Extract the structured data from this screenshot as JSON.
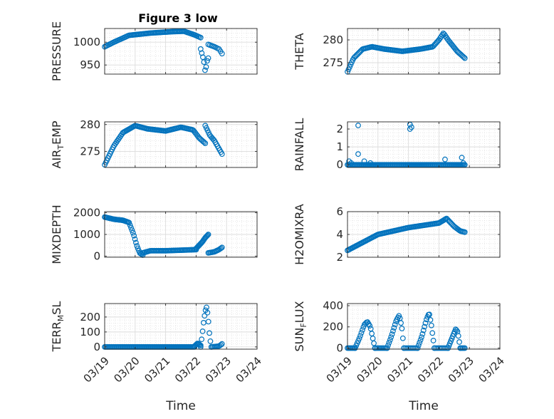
{
  "figure": {
    "title": "Figure 3 low",
    "marker_color": "#0072BD"
  },
  "chart_data": [
    {
      "type": "scatter",
      "ylabel": "PRESSURE",
      "ylabel_sub": "",
      "ylabel_rest": "",
      "ylim": [
        930,
        1030
      ],
      "yticks": [
        950,
        1000
      ],
      "xlim": [
        0,
        5
      ],
      "xticks": [
        0,
        1,
        2,
        3,
        4,
        5
      ],
      "xticklabels": [
        "03/19",
        "03/20",
        "03/21",
        "03/22",
        "03/23",
        "03/24"
      ],
      "xlabel": "",
      "grid": true,
      "segments": [
        {
          "x0": 0.0,
          "x1": 3.15,
          "n": 80,
          "pts": [
            [
              0,
              990
            ],
            [
              0.3,
              1000
            ],
            [
              0.8,
              1015
            ],
            [
              1.5,
              1020
            ],
            [
              2.2,
              1023
            ],
            [
              2.6,
              1024
            ],
            [
              2.95,
              1016
            ],
            [
              3.15,
              1010
            ]
          ]
        },
        {
          "x0": 3.15,
          "x1": 3.4,
          "n": 8,
          "pts": [
            [
              3.15,
              985
            ],
            [
              3.25,
              960
            ],
            [
              3.3,
              935
            ],
            [
              3.38,
              965
            ]
          ]
        },
        {
          "x0": 3.4,
          "x1": 3.85,
          "n": 10,
          "pts": [
            [
              3.4,
              995
            ],
            [
              3.6,
              990
            ],
            [
              3.75,
              985
            ],
            [
              3.85,
              975
            ]
          ]
        }
      ]
    },
    {
      "type": "scatter",
      "ylabel": "THETA",
      "ylabel_sub": "",
      "ylabel_rest": "",
      "ylim": [
        272.5,
        282.5
      ],
      "yticks": [
        275,
        280
      ],
      "xlim": [
        0,
        5
      ],
      "xticks": [
        0,
        1,
        2,
        3,
        4,
        5
      ],
      "xticklabels": [
        "03/19",
        "03/20",
        "03/21",
        "03/22",
        "03/23",
        "03/24"
      ],
      "xlabel": "",
      "grid": true,
      "segments": [
        {
          "x0": 0.0,
          "x1": 3.85,
          "n": 110,
          "pts": [
            [
              0,
              273
            ],
            [
              0.2,
              276
            ],
            [
              0.5,
              278
            ],
            [
              0.8,
              278.5
            ],
            [
              1.2,
              278
            ],
            [
              1.8,
              277.5
            ],
            [
              2.4,
              278
            ],
            [
              2.8,
              278.5
            ],
            [
              3.0,
              280
            ],
            [
              3.15,
              281.5
            ],
            [
              3.3,
              280
            ],
            [
              3.6,
              277.5
            ],
            [
              3.85,
              276
            ]
          ]
        }
      ]
    },
    {
      "type": "scatter",
      "ylabel": "AIR",
      "ylabel_sub": "T",
      "ylabel_rest": "EMP",
      "ylim": [
        272,
        280.5
      ],
      "yticks": [
        275,
        280
      ],
      "xlim": [
        0,
        5
      ],
      "xticks": [
        0,
        1,
        2,
        3,
        4,
        5
      ],
      "xticklabels": [
        "03/19",
        "03/20",
        "03/21",
        "03/22",
        "03/23",
        "03/24"
      ],
      "xlabel": "",
      "grid": true,
      "segments": [
        {
          "x0": 0.0,
          "x1": 3.3,
          "n": 95,
          "pts": [
            [
              0,
              272.5
            ],
            [
              0.3,
              276
            ],
            [
              0.6,
              278.5
            ],
            [
              1.0,
              279.8
            ],
            [
              1.4,
              279.2
            ],
            [
              2.0,
              278.8
            ],
            [
              2.5,
              279.5
            ],
            [
              2.9,
              279
            ],
            [
              3.1,
              277.5
            ],
            [
              3.3,
              276.5
            ]
          ]
        },
        {
          "x0": 3.3,
          "x1": 3.85,
          "n": 16,
          "pts": [
            [
              3.3,
              279.8
            ],
            [
              3.45,
              278
            ],
            [
              3.6,
              277
            ],
            [
              3.75,
              275.5
            ],
            [
              3.85,
              274.5
            ]
          ]
        }
      ]
    },
    {
      "type": "scatter",
      "ylabel": "RAINFALL",
      "ylabel_sub": "",
      "ylabel_rest": "",
      "ylim": [
        -0.15,
        2.4
      ],
      "yticks": [
        0,
        1,
        2
      ],
      "xlim": [
        0,
        5
      ],
      "xticks": [
        0,
        1,
        2,
        3,
        4,
        5
      ],
      "xticklabels": [
        "03/19",
        "03/20",
        "03/21",
        "03/22",
        "03/23",
        "03/24"
      ],
      "xlabel": "",
      "grid": true,
      "segments": [
        {
          "x0": 0.0,
          "x1": 3.85,
          "n": 110,
          "pts": [
            [
              0,
              0
            ],
            [
              3.85,
              0
            ]
          ]
        }
      ],
      "points": [
        [
          0.05,
          0.2
        ],
        [
          0.12,
          0.1
        ],
        [
          0.35,
          2.2
        ],
        [
          0.35,
          0.6
        ],
        [
          0.55,
          0.2
        ],
        [
          0.75,
          0.1
        ],
        [
          2.05,
          2.25
        ],
        [
          2.05,
          2.0
        ],
        [
          2.1,
          2.1
        ],
        [
          3.2,
          0.3
        ],
        [
          3.75,
          0.4
        ],
        [
          3.8,
          0.1
        ]
      ]
    },
    {
      "type": "scatter",
      "ylabel": "MIXDEPTH",
      "ylabel_sub": "",
      "ylabel_rest": "",
      "ylim": [
        -50,
        2050
      ],
      "yticks": [
        0,
        1000,
        2000
      ],
      "xlim": [
        0,
        5
      ],
      "xticks": [
        0,
        1,
        2,
        3,
        4,
        5
      ],
      "xticklabels": [
        "03/19",
        "03/20",
        "03/21",
        "03/22",
        "03/23",
        "03/24"
      ],
      "xlabel": "",
      "grid": true,
      "segments": [
        {
          "x0": 0.0,
          "x1": 1.25,
          "n": 40,
          "pts": [
            [
              0,
              1800
            ],
            [
              0.3,
              1700
            ],
            [
              0.6,
              1650
            ],
            [
              0.8,
              1550
            ],
            [
              0.95,
              1000
            ],
            [
              1.05,
              500
            ],
            [
              1.15,
              150
            ],
            [
              1.25,
              50
            ]
          ]
        },
        {
          "x0": 1.25,
          "x1": 3.0,
          "n": 45,
          "pts": [
            [
              1.25,
              150
            ],
            [
              1.5,
              250
            ],
            [
              2.0,
              250
            ],
            [
              2.6,
              280
            ],
            [
              3.0,
              300
            ]
          ]
        },
        {
          "x0": 3.0,
          "x1": 3.4,
          "n": 18,
          "pts": [
            [
              3.0,
              350
            ],
            [
              3.1,
              500
            ],
            [
              3.2,
              650
            ],
            [
              3.3,
              850
            ],
            [
              3.4,
              1000
            ]
          ]
        },
        {
          "x0": 3.4,
          "x1": 3.85,
          "n": 14,
          "pts": [
            [
              3.4,
              150
            ],
            [
              3.6,
              200
            ],
            [
              3.75,
              300
            ],
            [
              3.85,
              400
            ]
          ]
        }
      ]
    },
    {
      "type": "scatter",
      "ylabel": "H2OMIXRA",
      "ylabel_sub": "",
      "ylabel_rest": "",
      "ylim": [
        2,
        6
      ],
      "yticks": [
        2,
        4,
        6
      ],
      "xlim": [
        0,
        5
      ],
      "xticks": [
        0,
        1,
        2,
        3,
        4,
        5
      ],
      "xticklabels": [
        "03/19",
        "03/20",
        "03/21",
        "03/22",
        "03/23",
        "03/24"
      ],
      "xlabel": "",
      "grid": true,
      "segments": [
        {
          "x0": 0.0,
          "x1": 3.85,
          "n": 110,
          "pts": [
            [
              0,
              2.6
            ],
            [
              0.5,
              3.3
            ],
            [
              1.0,
              4.0
            ],
            [
              1.5,
              4.3
            ],
            [
              2.0,
              4.6
            ],
            [
              2.5,
              4.8
            ],
            [
              3.0,
              5.0
            ],
            [
              3.25,
              5.4
            ],
            [
              3.5,
              4.7
            ],
            [
              3.7,
              4.3
            ],
            [
              3.85,
              4.2
            ]
          ]
        }
      ]
    },
    {
      "type": "scatter",
      "ylabel": "TERR",
      "ylabel_sub": "M",
      "ylabel_rest": "SL",
      "ylim": [
        -15,
        290
      ],
      "yticks": [
        0,
        100,
        200
      ],
      "xlim": [
        0,
        5
      ],
      "xticks": [
        0,
        1,
        2,
        3,
        4,
        5
      ],
      "xticklabels": [
        "03/19",
        "03/20",
        "03/21",
        "03/22",
        "03/23",
        "03/24"
      ],
      "xlabel": "Time",
      "grid": true,
      "segments": [
        {
          "x0": 0.0,
          "x1": 2.95,
          "n": 85,
          "pts": [
            [
              0,
              0
            ],
            [
              2.95,
              0
            ]
          ]
        },
        {
          "x0": 2.95,
          "x1": 3.15,
          "n": 8,
          "pts": [
            [
              2.95,
              5
            ],
            [
              3.05,
              25
            ],
            [
              3.15,
              10
            ]
          ]
        },
        {
          "x0": 3.15,
          "x1": 3.5,
          "n": 12,
          "pts": [
            [
              3.15,
              0
            ],
            [
              3.2,
              80
            ],
            [
              3.25,
              170
            ],
            [
              3.3,
              240
            ],
            [
              3.35,
              270
            ],
            [
              3.4,
              180
            ],
            [
              3.45,
              60
            ],
            [
              3.5,
              0
            ]
          ]
        },
        {
          "x0": 3.5,
          "x1": 3.85,
          "n": 10,
          "pts": [
            [
              3.5,
              0
            ],
            [
              3.75,
              5
            ],
            [
              3.85,
              20
            ]
          ]
        }
      ]
    },
    {
      "type": "scatter",
      "ylabel": "SUN",
      "ylabel_sub": "F",
      "ylabel_rest": "LUX",
      "ylim": [
        -10,
        420
      ],
      "yticks": [
        0,
        200,
        400
      ],
      "xlim": [
        0,
        5
      ],
      "xticks": [
        0,
        1,
        2,
        3,
        4,
        5
      ],
      "xticklabels": [
        "03/19",
        "03/20",
        "03/21",
        "03/22",
        "03/23",
        "03/24"
      ],
      "xlabel": "Time",
      "grid": true,
      "segments": [
        {
          "x0": 0.0,
          "x1": 0.25,
          "n": 8,
          "pts": [
            [
              0,
              0
            ],
            [
              0.25,
              0
            ]
          ]
        },
        {
          "x0": 0.25,
          "x1": 0.9,
          "n": 20,
          "pts": [
            [
              0.25,
              0
            ],
            [
              0.4,
              100
            ],
            [
              0.55,
              220
            ],
            [
              0.65,
              250
            ],
            [
              0.75,
              200
            ],
            [
              0.9,
              0
            ]
          ]
        },
        {
          "x0": 0.9,
          "x1": 1.3,
          "n": 10,
          "pts": [
            [
              0.9,
              0
            ],
            [
              1.3,
              0
            ]
          ]
        },
        {
          "x0": 1.3,
          "x1": 1.85,
          "n": 18,
          "pts": [
            [
              1.3,
              0
            ],
            [
              1.45,
              120
            ],
            [
              1.6,
              260
            ],
            [
              1.7,
              310
            ],
            [
              1.78,
              200
            ],
            [
              1.85,
              0
            ]
          ]
        },
        {
          "x0": 1.85,
          "x1": 2.3,
          "n": 10,
          "pts": [
            [
              1.85,
              0
            ],
            [
              2.3,
              0
            ]
          ]
        },
        {
          "x0": 2.3,
          "x1": 2.85,
          "n": 18,
          "pts": [
            [
              2.3,
              0
            ],
            [
              2.45,
              120
            ],
            [
              2.6,
              280
            ],
            [
              2.68,
              330
            ],
            [
              2.75,
              220
            ],
            [
              2.85,
              0
            ]
          ]
        },
        {
          "x0": 2.85,
          "x1": 3.3,
          "n": 10,
          "pts": [
            [
              2.85,
              0
            ],
            [
              3.3,
              0
            ]
          ]
        },
        {
          "x0": 3.3,
          "x1": 3.7,
          "n": 14,
          "pts": [
            [
              3.3,
              0
            ],
            [
              3.45,
              110
            ],
            [
              3.55,
              180
            ],
            [
              3.62,
              150
            ],
            [
              3.7,
              0
            ]
          ]
        },
        {
          "x0": 3.7,
          "x1": 3.85,
          "n": 5,
          "pts": [
            [
              3.7,
              0
            ],
            [
              3.85,
              0
            ]
          ]
        }
      ]
    }
  ]
}
